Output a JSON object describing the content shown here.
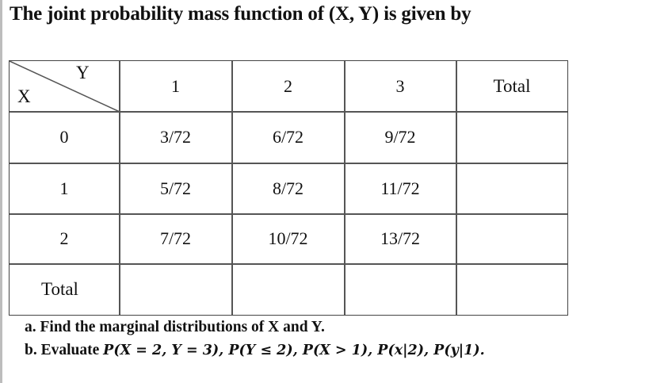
{
  "heading": "The joint probability mass function of (X, Y) is given by",
  "table": {
    "corner_row_label": "X",
    "corner_col_label": "Y",
    "col_headers": [
      "1",
      "2",
      "3",
      "Total"
    ],
    "rows": [
      {
        "x": "0",
        "cells": [
          "3/72",
          "6/72",
          "9/72",
          ""
        ]
      },
      {
        "x": "1",
        "cells": [
          "5/72",
          "8/72",
          "11/72",
          ""
        ]
      },
      {
        "x": "2",
        "cells": [
          "7/72",
          "10/72",
          "13/72",
          ""
        ]
      },
      {
        "x": "Total",
        "cells": [
          "",
          "",
          "",
          ""
        ]
      }
    ]
  },
  "questions": {
    "a_label": "a.",
    "a_text": "Find the marginal distributions of X and Y.",
    "b_label": "b.",
    "b_text": "Evaluate",
    "b_math": "P(X = 2, Y = 3),  P(Y ≤ 2),  P(X > 1),  P(x|2),  P(y|1)."
  }
}
